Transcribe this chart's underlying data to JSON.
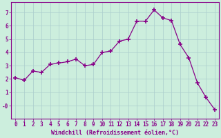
{
  "x": [
    0,
    1,
    2,
    3,
    4,
    5,
    6,
    7,
    8,
    9,
    10,
    11,
    12,
    13,
    14,
    15,
    16,
    17,
    18,
    19,
    20,
    21,
    22,
    23
  ],
  "y": [
    2.1,
    1.9,
    2.6,
    2.5,
    3.1,
    3.2,
    3.3,
    3.5,
    3.0,
    3.1,
    4.0,
    4.1,
    4.85,
    5.0,
    6.35,
    6.35,
    7.2,
    6.6,
    6.4,
    4.6,
    3.6,
    1.7,
    0.6,
    -0.3
  ],
  "line_color": "#880088",
  "marker": "+",
  "marker_size": 4,
  "bg_color": "#cceedd",
  "grid_color": "#aacccc",
  "xlabel": "Windchill (Refroidissement éolien,°C)",
  "ylabel": "",
  "xlim": [
    -0.5,
    23.5
  ],
  "ylim": [
    -1.0,
    7.8
  ],
  "yticks": [
    0,
    1,
    2,
    3,
    4,
    5,
    6,
    7
  ],
  "ytick_labels": [
    "-0",
    "1",
    "2",
    "3",
    "4",
    "5",
    "6",
    "7"
  ],
  "xticks": [
    0,
    1,
    2,
    3,
    4,
    5,
    6,
    7,
    8,
    9,
    10,
    11,
    12,
    13,
    14,
    15,
    16,
    17,
    18,
    19,
    20,
    21,
    22,
    23
  ],
  "axis_color": "#880088",
  "tick_color": "#880088",
  "xlabel_fontsize": 6.0,
  "tick_fontsize": 5.5
}
